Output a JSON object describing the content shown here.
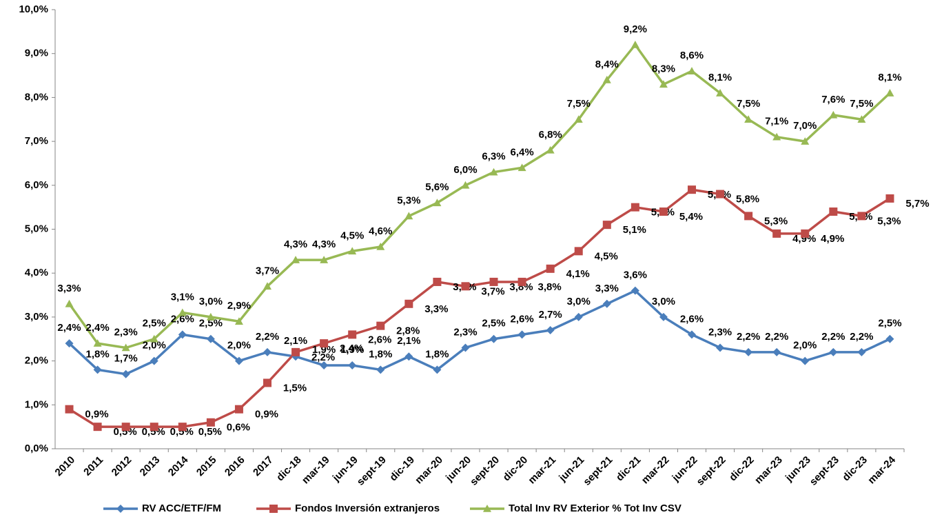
{
  "chart_data": {
    "type": "line",
    "categories": [
      "2010",
      "2011",
      "2012",
      "2013",
      "2014",
      "2015",
      "2016",
      "2017",
      "dic-18",
      "mar-19",
      "jun-19",
      "sept-19",
      "dic-19",
      "mar-20",
      "jun-20",
      "sept-20",
      "dic-20",
      "mar-21",
      "jun-21",
      "sept-21",
      "dic-21",
      "mar-22",
      "jun-22",
      "sept-22",
      "dic-22",
      "mar-23",
      "jun-23",
      "sept-23",
      "dic-23",
      "mar-24"
    ],
    "series": [
      {
        "name": "RV ACC/ETF/FM",
        "color": "#4a7ebb",
        "marker": "diamond",
        "values": [
          2.4,
          1.8,
          1.7,
          2.0,
          2.6,
          2.5,
          2.0,
          2.2,
          2.1,
          1.9,
          1.9,
          1.8,
          2.1,
          1.8,
          2.3,
          2.5,
          2.6,
          2.7,
          3.0,
          3.3,
          3.6,
          3.0,
          2.6,
          2.3,
          2.2,
          2.2,
          2.0,
          2.2,
          2.2,
          2.5
        ],
        "value_labels": [
          "2,4%",
          "1,8%",
          "1,7%",
          "2,0%",
          "2,6%",
          "2,5%",
          "2,0%",
          "2,2%",
          "2,1%",
          "1,9%",
          "1,9%",
          "1,8%",
          "2,1%",
          "1,8%",
          "2,3%",
          "2,5%",
          "2,6%",
          "2,7%",
          "3,0%",
          "3,3%",
          "3,6%",
          "3,0%",
          "2,6%",
          "2,3%",
          "2,2%",
          "2,2%",
          "2,0%",
          "2,2%",
          "2,2%",
          "2,5%"
        ]
      },
      {
        "name": "Fondos Inversión extranjeros",
        "color": "#be4b48",
        "marker": "square",
        "values": [
          0.9,
          0.5,
          0.5,
          0.5,
          0.5,
          0.6,
          0.9,
          1.5,
          2.2,
          2.4,
          2.6,
          2.8,
          3.3,
          3.8,
          3.7,
          3.8,
          3.8,
          4.1,
          4.5,
          5.1,
          5.5,
          5.4,
          5.9,
          5.8,
          5.3,
          4.9,
          4.9,
          5.4,
          5.3,
          5.7
        ],
        "value_labels": [
          "0,9%",
          "0,5%",
          "0,5%",
          "0,5%",
          "0,5%",
          "0,6%",
          "0,9%",
          "1,5%",
          "2,2%",
          "2,4%",
          "2,6%",
          "2,8%",
          "3,3%",
          "3,8%",
          "3,7%",
          "3,8%",
          "3,8%",
          "4,1%",
          "4,5%",
          "5,1%",
          "5,5%",
          "5,4%",
          "5,9%",
          "5,8%",
          "5,3%",
          "4,9%",
          "4,9%",
          "5,4%",
          "5,3%",
          "5,7%"
        ]
      },
      {
        "name": "Total Inv RV Exterior % Tot Inv CSV",
        "color": "#98b954",
        "marker": "triangle",
        "values": [
          3.3,
          2.4,
          2.3,
          2.5,
          3.1,
          3.0,
          2.9,
          3.7,
          4.3,
          4.3,
          4.5,
          4.6,
          5.3,
          5.6,
          6.0,
          6.3,
          6.4,
          6.8,
          7.5,
          8.4,
          9.2,
          8.3,
          8.6,
          8.1,
          7.5,
          7.1,
          7.0,
          7.6,
          7.5,
          8.1
        ],
        "value_labels": [
          "3,3%",
          "2,4%",
          "2,3%",
          "2,5%",
          "3,1%",
          "3,0%",
          "2,9%",
          "3,7%",
          "4,3%",
          "4,3%",
          "4,5%",
          "4,6%",
          "5,3%",
          "5,6%",
          "6,0%",
          "6,3%",
          "6,4%",
          "6,8%",
          "7,5%",
          "8,4%",
          "9,2%",
          "8,3%",
          "8,6%",
          "8,1%",
          "7,5%",
          "7,1%",
          "7,0%",
          "7,6%",
          "7,5%",
          "8,1%"
        ]
      }
    ],
    "ylim": [
      0,
      10
    ],
    "yticks": [
      {
        "value": 0,
        "label": "0,0%"
      },
      {
        "value": 1,
        "label": "1,0%"
      },
      {
        "value": 2,
        "label": "2,0%"
      },
      {
        "value": 3,
        "label": "3,0%"
      },
      {
        "value": 4,
        "label": "4,0%"
      },
      {
        "value": 5,
        "label": "5,0%"
      },
      {
        "value": 6,
        "label": "6,0%"
      },
      {
        "value": 7,
        "label": "7,0%"
      },
      {
        "value": 8,
        "label": "8,0%"
      },
      {
        "value": 9,
        "label": "9,0%"
      },
      {
        "value": 10,
        "label": "10,0%"
      }
    ],
    "grid": false,
    "legend": "bottom"
  }
}
